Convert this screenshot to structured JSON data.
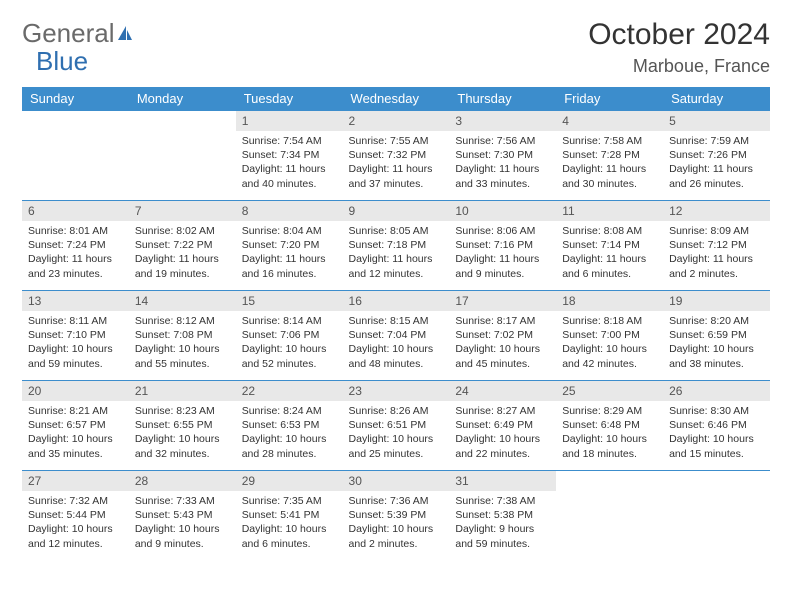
{
  "logo": {
    "part1": "General",
    "part2": "Blue"
  },
  "title": "October 2024",
  "location": "Marboue, France",
  "colors": {
    "header_bg": "#3c8dcc",
    "header_fg": "#ffffff",
    "daynum_bg": "#e8e8e8",
    "row_border": "#3c8dcc",
    "logo_gray": "#6a6a6a",
    "logo_blue": "#2f6fb0"
  },
  "weekdays": [
    "Sunday",
    "Monday",
    "Tuesday",
    "Wednesday",
    "Thursday",
    "Friday",
    "Saturday"
  ],
  "weeks": [
    [
      {
        "n": "",
        "sr": "",
        "ss": "",
        "dl": "",
        "empty": true
      },
      {
        "n": "",
        "sr": "",
        "ss": "",
        "dl": "",
        "empty": true
      },
      {
        "n": "1",
        "sr": "Sunrise: 7:54 AM",
        "ss": "Sunset: 7:34 PM",
        "dl": "Daylight: 11 hours and 40 minutes."
      },
      {
        "n": "2",
        "sr": "Sunrise: 7:55 AM",
        "ss": "Sunset: 7:32 PM",
        "dl": "Daylight: 11 hours and 37 minutes."
      },
      {
        "n": "3",
        "sr": "Sunrise: 7:56 AM",
        "ss": "Sunset: 7:30 PM",
        "dl": "Daylight: 11 hours and 33 minutes."
      },
      {
        "n": "4",
        "sr": "Sunrise: 7:58 AM",
        "ss": "Sunset: 7:28 PM",
        "dl": "Daylight: 11 hours and 30 minutes."
      },
      {
        "n": "5",
        "sr": "Sunrise: 7:59 AM",
        "ss": "Sunset: 7:26 PM",
        "dl": "Daylight: 11 hours and 26 minutes."
      }
    ],
    [
      {
        "n": "6",
        "sr": "Sunrise: 8:01 AM",
        "ss": "Sunset: 7:24 PM",
        "dl": "Daylight: 11 hours and 23 minutes."
      },
      {
        "n": "7",
        "sr": "Sunrise: 8:02 AM",
        "ss": "Sunset: 7:22 PM",
        "dl": "Daylight: 11 hours and 19 minutes."
      },
      {
        "n": "8",
        "sr": "Sunrise: 8:04 AM",
        "ss": "Sunset: 7:20 PM",
        "dl": "Daylight: 11 hours and 16 minutes."
      },
      {
        "n": "9",
        "sr": "Sunrise: 8:05 AM",
        "ss": "Sunset: 7:18 PM",
        "dl": "Daylight: 11 hours and 12 minutes."
      },
      {
        "n": "10",
        "sr": "Sunrise: 8:06 AM",
        "ss": "Sunset: 7:16 PM",
        "dl": "Daylight: 11 hours and 9 minutes."
      },
      {
        "n": "11",
        "sr": "Sunrise: 8:08 AM",
        "ss": "Sunset: 7:14 PM",
        "dl": "Daylight: 11 hours and 6 minutes."
      },
      {
        "n": "12",
        "sr": "Sunrise: 8:09 AM",
        "ss": "Sunset: 7:12 PM",
        "dl": "Daylight: 11 hours and 2 minutes."
      }
    ],
    [
      {
        "n": "13",
        "sr": "Sunrise: 8:11 AM",
        "ss": "Sunset: 7:10 PM",
        "dl": "Daylight: 10 hours and 59 minutes."
      },
      {
        "n": "14",
        "sr": "Sunrise: 8:12 AM",
        "ss": "Sunset: 7:08 PM",
        "dl": "Daylight: 10 hours and 55 minutes."
      },
      {
        "n": "15",
        "sr": "Sunrise: 8:14 AM",
        "ss": "Sunset: 7:06 PM",
        "dl": "Daylight: 10 hours and 52 minutes."
      },
      {
        "n": "16",
        "sr": "Sunrise: 8:15 AM",
        "ss": "Sunset: 7:04 PM",
        "dl": "Daylight: 10 hours and 48 minutes."
      },
      {
        "n": "17",
        "sr": "Sunrise: 8:17 AM",
        "ss": "Sunset: 7:02 PM",
        "dl": "Daylight: 10 hours and 45 minutes."
      },
      {
        "n": "18",
        "sr": "Sunrise: 8:18 AM",
        "ss": "Sunset: 7:00 PM",
        "dl": "Daylight: 10 hours and 42 minutes."
      },
      {
        "n": "19",
        "sr": "Sunrise: 8:20 AM",
        "ss": "Sunset: 6:59 PM",
        "dl": "Daylight: 10 hours and 38 minutes."
      }
    ],
    [
      {
        "n": "20",
        "sr": "Sunrise: 8:21 AM",
        "ss": "Sunset: 6:57 PM",
        "dl": "Daylight: 10 hours and 35 minutes."
      },
      {
        "n": "21",
        "sr": "Sunrise: 8:23 AM",
        "ss": "Sunset: 6:55 PM",
        "dl": "Daylight: 10 hours and 32 minutes."
      },
      {
        "n": "22",
        "sr": "Sunrise: 8:24 AM",
        "ss": "Sunset: 6:53 PM",
        "dl": "Daylight: 10 hours and 28 minutes."
      },
      {
        "n": "23",
        "sr": "Sunrise: 8:26 AM",
        "ss": "Sunset: 6:51 PM",
        "dl": "Daylight: 10 hours and 25 minutes."
      },
      {
        "n": "24",
        "sr": "Sunrise: 8:27 AM",
        "ss": "Sunset: 6:49 PM",
        "dl": "Daylight: 10 hours and 22 minutes."
      },
      {
        "n": "25",
        "sr": "Sunrise: 8:29 AM",
        "ss": "Sunset: 6:48 PM",
        "dl": "Daylight: 10 hours and 18 minutes."
      },
      {
        "n": "26",
        "sr": "Sunrise: 8:30 AM",
        "ss": "Sunset: 6:46 PM",
        "dl": "Daylight: 10 hours and 15 minutes."
      }
    ],
    [
      {
        "n": "27",
        "sr": "Sunrise: 7:32 AM",
        "ss": "Sunset: 5:44 PM",
        "dl": "Daylight: 10 hours and 12 minutes."
      },
      {
        "n": "28",
        "sr": "Sunrise: 7:33 AM",
        "ss": "Sunset: 5:43 PM",
        "dl": "Daylight: 10 hours and 9 minutes."
      },
      {
        "n": "29",
        "sr": "Sunrise: 7:35 AM",
        "ss": "Sunset: 5:41 PM",
        "dl": "Daylight: 10 hours and 6 minutes."
      },
      {
        "n": "30",
        "sr": "Sunrise: 7:36 AM",
        "ss": "Sunset: 5:39 PM",
        "dl": "Daylight: 10 hours and 2 minutes."
      },
      {
        "n": "31",
        "sr": "Sunrise: 7:38 AM",
        "ss": "Sunset: 5:38 PM",
        "dl": "Daylight: 9 hours and 59 minutes."
      },
      {
        "n": "",
        "sr": "",
        "ss": "",
        "dl": "",
        "empty": true
      },
      {
        "n": "",
        "sr": "",
        "ss": "",
        "dl": "",
        "empty": true
      }
    ]
  ]
}
